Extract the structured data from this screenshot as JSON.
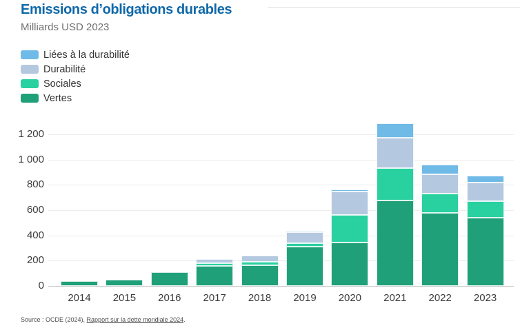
{
  "header": {
    "title": "Emissions d’obligations durables",
    "subtitle": "Milliards USD 2023"
  },
  "legend": [
    {
      "label": "Liées à la durabilité",
      "color": "#70bae7"
    },
    {
      "label": "Durabilité",
      "color": "#b4c8e0"
    },
    {
      "label": "Sociales",
      "color": "#29d0a0"
    },
    {
      "label": "Vertes",
      "color": "#20a078"
    }
  ],
  "chart_data": {
    "type": "bar",
    "stacked": true,
    "title": "Emissions d’obligations durables",
    "subtitle": "Milliards USD 2023",
    "ylabel": "Milliards USD",
    "xlabel": "",
    "grid": true,
    "legend_position": "top-left",
    "categories": [
      "2014",
      "2015",
      "2016",
      "2017",
      "2018",
      "2019",
      "2020",
      "2021",
      "2022",
      "2023"
    ],
    "series": [
      {
        "name": "Vertes",
        "color": "#20a078",
        "values": [
          40,
          50,
          110,
          160,
          165,
          310,
          345,
          675,
          580,
          540
        ]
      },
      {
        "name": "Sociales",
        "color": "#29d0a0",
        "values": [
          0,
          0,
          0,
          20,
          25,
          30,
          215,
          255,
          150,
          130
        ]
      },
      {
        "name": "Durabilité",
        "color": "#b4c8e0",
        "values": [
          0,
          0,
          0,
          30,
          50,
          85,
          185,
          245,
          155,
          150
        ]
      },
      {
        "name": "Liées à la durabilité",
        "color": "#70bae7",
        "values": [
          0,
          0,
          0,
          0,
          0,
          10,
          20,
          110,
          75,
          55
        ]
      }
    ],
    "totals": [
      40,
      50,
      110,
      210,
      240,
      435,
      765,
      1285,
      960,
      875
    ],
    "ylim": [
      0,
      1300
    ],
    "yticks": [
      0,
      200,
      400,
      600,
      800,
      1000,
      1200
    ],
    "ytick_labels": [
      "0",
      "200",
      "400",
      "600",
      "800",
      "1 000",
      "1 200"
    ]
  },
  "source": {
    "prefix": "Source : OCDE (2024), ",
    "link_label": "Rapport sur la dette mondiale 2024",
    "suffix": "."
  }
}
